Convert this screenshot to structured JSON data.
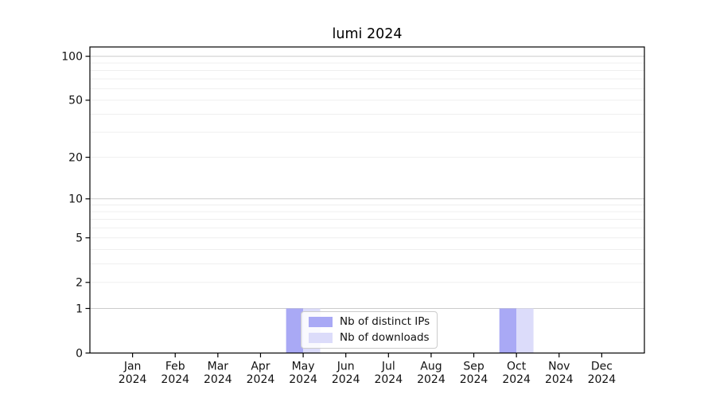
{
  "figure": {
    "background": "#ffffff"
  },
  "colors": {
    "bar_distinct_ips": "#a9a9f5",
    "bar_downloads": "#dcdcfa",
    "grid_minor": "#efefef",
    "grid_major": "#cccccc",
    "axis_frame": "#000000",
    "tick_mark": "#000000",
    "legend_border": "#cccccc"
  },
  "chart_data": {
    "type": "bar",
    "title": "lumi 2024",
    "xlabel": "",
    "ylabel": "",
    "categories": [
      "Jan 2024",
      "Feb 2024",
      "Mar 2024",
      "Apr 2024",
      "May 2024",
      "Jun 2024",
      "Jul 2024",
      "Aug 2024",
      "Sep 2024",
      "Oct 2024",
      "Nov 2024",
      "Dec 2024"
    ],
    "category_line1": [
      "Jan",
      "Feb",
      "Mar",
      "Apr",
      "May",
      "Jun",
      "Jul",
      "Aug",
      "Sep",
      "Oct",
      "Nov",
      "Dec"
    ],
    "category_line2": [
      "2024",
      "2024",
      "2024",
      "2024",
      "2024",
      "2024",
      "2024",
      "2024",
      "2024",
      "2024",
      "2024",
      "2024"
    ],
    "series": [
      {
        "name": "Nb of distinct IPs",
        "color": "#a9a9f5",
        "values": [
          0,
          0,
          0,
          0,
          1,
          0,
          0,
          0,
          0,
          1,
          0,
          0
        ]
      },
      {
        "name": "Nb of downloads",
        "color": "#dcdcfa",
        "values": [
          0,
          0,
          0,
          0,
          1,
          0,
          0,
          0,
          0,
          1,
          0,
          0
        ]
      }
    ],
    "y_axis": {
      "scale": "log1p",
      "tick_values": [
        0,
        1,
        2,
        5,
        10,
        20,
        50,
        100
      ],
      "tick_labels": [
        "0",
        "1",
        "2",
        "5",
        "10",
        "20",
        "50",
        "100"
      ],
      "minor_gridline_values": [
        2,
        3,
        4,
        5,
        6,
        7,
        8,
        9,
        20,
        30,
        40,
        50,
        60,
        70,
        80,
        90
      ],
      "major_gridline_values": [
        1,
        10,
        100
      ],
      "ylim_bottom": 0,
      "ylim_top_approx": 120
    },
    "legend": {
      "position": "lower center",
      "entries": [
        "Nb of distinct IPs",
        "Nb of downloads"
      ]
    },
    "grid": true
  }
}
